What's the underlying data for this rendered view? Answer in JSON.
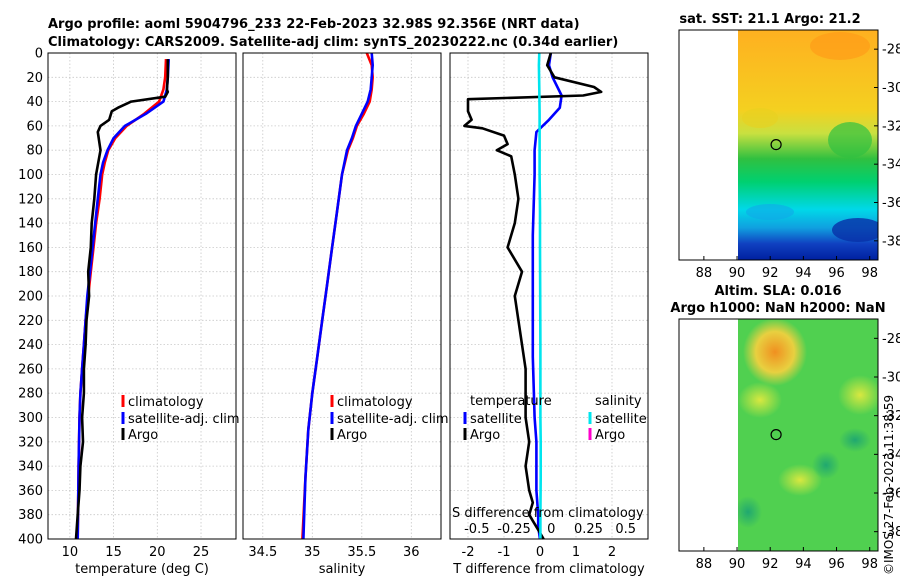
{
  "header": {
    "line1": "Argo profile: aoml 5904796_233 22-Feb-2023 32.98S 92.356E (NRT data)",
    "line2": "Climatology: CARS2009. Satellite-adj clim: synTS_20230222.nc (0.34d earlier)"
  },
  "colors": {
    "climatology": "#ff0000",
    "satellite": "#0000ff",
    "argo": "#000000",
    "satellite_salinity": "#00e5ee",
    "argo_salinity": "#ff00cc"
  },
  "chart_data": [
    {
      "id": "temperature",
      "type": "line",
      "xlabel": "temperature (deg C)",
      "ylabel": "",
      "xlim": [
        7.5,
        29
      ],
      "ylim": [
        0,
        400
      ],
      "y_reversed": true,
      "xticks": [
        10,
        15,
        20,
        25
      ],
      "yticks": [
        0,
        20,
        40,
        60,
        80,
        100,
        120,
        140,
        160,
        180,
        200,
        220,
        240,
        260,
        280,
        300,
        320,
        340,
        360,
        380,
        400
      ],
      "grid": true,
      "legend_position": "lower-right",
      "legend": [
        {
          "label": "climatology",
          "color": "#ff0000"
        },
        {
          "label": "satellite-adj. clim",
          "color": "#0000ff"
        },
        {
          "label": "Argo",
          "color": "#000000"
        }
      ],
      "series": [
        {
          "name": "climatology",
          "color": "#ff0000",
          "x": [
            21.0,
            20.9,
            20.7,
            20.2,
            18.5,
            16.5,
            15.2,
            14.4,
            14.0,
            13.7,
            13.4,
            13.0,
            12.7,
            12.4,
            12.1,
            11.8,
            11.6,
            11.4,
            11.2,
            11.1,
            11.0,
            10.9
          ],
          "y": [
            5,
            20,
            30,
            40,
            50,
            60,
            70,
            80,
            90,
            100,
            120,
            140,
            160,
            180,
            200,
            220,
            240,
            260,
            280,
            300,
            340,
            400
          ]
        },
        {
          "name": "satellite-adj. clim",
          "color": "#0000ff",
          "x": [
            21.3,
            21.2,
            21.1,
            20.7,
            18.7,
            16.3,
            15.0,
            14.3,
            13.8,
            13.5,
            13.2,
            12.9,
            12.6,
            12.3,
            12.0,
            11.8,
            11.6,
            11.4,
            11.2,
            11.1,
            11.0,
            10.9
          ],
          "y": [
            5,
            20,
            30,
            40,
            50,
            60,
            70,
            80,
            90,
            100,
            120,
            140,
            160,
            180,
            200,
            220,
            240,
            260,
            280,
            300,
            340,
            400
          ]
        },
        {
          "name": "Argo",
          "color": "#000000",
          "x": [
            21.2,
            21.2,
            21.1,
            21.2,
            20.9,
            17.0,
            15.5,
            14.8,
            14.5,
            13.5,
            13.2,
            13.5,
            13.0,
            12.8,
            12.5,
            12.4,
            12.1,
            12.2,
            11.9,
            11.8,
            11.6,
            11.6,
            11.4,
            11.5,
            11.2,
            11.1,
            10.9,
            10.7
          ],
          "y": [
            5,
            20,
            30,
            32,
            36,
            40,
            45,
            48,
            55,
            60,
            65,
            80,
            100,
            120,
            140,
            160,
            180,
            200,
            220,
            240,
            260,
            280,
            300,
            320,
            340,
            360,
            380,
            400
          ]
        }
      ]
    },
    {
      "id": "salinity",
      "type": "line",
      "xlabel": "salinity",
      "xlim": [
        34.3,
        36.3
      ],
      "ylim": [
        0,
        400
      ],
      "y_reversed": true,
      "xticks": [
        34.5,
        35,
        35.5,
        36
      ],
      "grid": true,
      "legend_position": "lower-right",
      "legend": [
        {
          "label": "climatology",
          "color": "#ff0000"
        },
        {
          "label": "satellite-adj. clim",
          "color": "#0000ff"
        },
        {
          "label": "Argo",
          "color": "#000000"
        }
      ],
      "series": [
        {
          "name": "climatology",
          "color": "#ff0000",
          "x": [
            35.55,
            35.6,
            35.61,
            35.6,
            35.58,
            35.52,
            35.45,
            35.41,
            35.36,
            35.3,
            35.25,
            35.2,
            35.15,
            35.1,
            35.05,
            35.0,
            34.96,
            34.93,
            34.9
          ],
          "y": [
            0,
            10,
            20,
            30,
            40,
            50,
            60,
            70,
            80,
            100,
            130,
            160,
            190,
            220,
            250,
            280,
            310,
            350,
            400
          ]
        },
        {
          "name": "satellite-adj. clim",
          "color": "#0000ff",
          "x": [
            35.6,
            35.61,
            35.6,
            35.59,
            35.56,
            35.5,
            35.44,
            35.4,
            35.35,
            35.3,
            35.25,
            35.2,
            35.15,
            35.1,
            35.05,
            35.0,
            34.96,
            34.93,
            34.91
          ],
          "y": [
            0,
            10,
            20,
            30,
            40,
            50,
            60,
            70,
            80,
            100,
            130,
            160,
            190,
            220,
            250,
            280,
            310,
            350,
            400
          ]
        }
      ]
    },
    {
      "id": "difference",
      "type": "line",
      "xlabel": "T difference from climatology",
      "xlim": [
        -2.5,
        3
      ],
      "ylim": [
        0,
        400
      ],
      "y_reversed": true,
      "xticks": [
        -2,
        -1,
        0,
        1,
        2
      ],
      "top_axis_label": "S difference from climatology",
      "top_ticks": [
        "-0.5",
        "-0.25",
        "0",
        "0.25",
        "0.5"
      ],
      "top_tick_values": [
        -0.5,
        -0.25,
        0,
        0.25,
        0.5
      ],
      "grid": true,
      "legend_position": "lower-center",
      "legend_headers": [
        "temperature",
        "salinity"
      ],
      "legend": [
        {
          "label": "satellite",
          "color": "#0000ff",
          "group": "temperature"
        },
        {
          "label": "Argo",
          "color": "#000000",
          "group": "temperature"
        },
        {
          "label": "satellite",
          "color": "#00e5ee",
          "group": "salinity"
        },
        {
          "label": "Argo",
          "color": "#ff00cc",
          "group": "salinity"
        }
      ],
      "series": [
        {
          "name": "T satellite",
          "color": "#0000ff",
          "x": [
            0.3,
            0.25,
            0.35,
            0.6,
            0.55,
            0.25,
            -0.1,
            -0.15,
            -0.15,
            -0.2,
            -0.2,
            -0.2,
            -0.15,
            -0.1,
            -0.1,
            -0.1,
            -0.05,
            -0.05,
            0.0
          ],
          "y": [
            0,
            10,
            20,
            35,
            45,
            55,
            65,
            80,
            100,
            150,
            200,
            250,
            300,
            320,
            340,
            360,
            380,
            390,
            400
          ]
        },
        {
          "name": "T Argo",
          "color": "#000000",
          "x": [
            0.3,
            0.2,
            0.4,
            1.5,
            1.7,
            1.2,
            -2.0,
            -2.0,
            -1.9,
            -2.1,
            -1.6,
            -1.0,
            -0.9,
            -1.2,
            -0.8,
            -0.7,
            -0.6,
            -0.7,
            -0.9,
            -0.5,
            -0.7,
            -0.6,
            -0.5,
            -0.4,
            -0.4,
            -0.4,
            -0.3,
            -0.4,
            -0.3,
            -0.2,
            -0.3,
            -0.2,
            -0.1,
            0.0,
            0.1
          ],
          "y": [
            0,
            10,
            20,
            28,
            32,
            35,
            38,
            48,
            55,
            60,
            62,
            68,
            75,
            80,
            85,
            100,
            120,
            140,
            160,
            180,
            200,
            220,
            240,
            260,
            280,
            300,
            320,
            340,
            360,
            370,
            380,
            385,
            390,
            395,
            400
          ]
        },
        {
          "name": "S satellite",
          "color": "#00e5ee",
          "x": [
            -0.02,
            -0.03,
            -0.02,
            -0.01,
            -0.01,
            -0.01,
            0.0,
            0.0,
            0.005,
            0.01,
            0.01,
            0.01,
            0.02,
            0.02,
            0.01,
            0.01
          ],
          "y": [
            0,
            10,
            30,
            50,
            70,
            100,
            130,
            160,
            200,
            240,
            280,
            300,
            320,
            350,
            380,
            400
          ]
        }
      ]
    },
    {
      "id": "sst-map",
      "type": "heatmap",
      "title": "sat. SST: 21.1 Argo: 21.2",
      "xticks": [
        "88",
        "90",
        "92",
        "94",
        "96",
        "98"
      ],
      "xtick_values": [
        88,
        90,
        92,
        94,
        96,
        98
      ],
      "yticks": [
        "-28",
        "-30",
        "-32",
        "-34",
        "-36",
        "-38"
      ],
      "ytick_values": [
        -28,
        -30,
        -32,
        -34,
        -36,
        -38
      ],
      "xlim": [
        86.5,
        98.5
      ],
      "ylim": [
        -39,
        -27
      ],
      "data_xlim": [
        90,
        98.3
      ],
      "marker": {
        "lon": 92.356,
        "lat": -32.98
      },
      "bands": [
        {
          "lat": [
            -27,
            -32
          ],
          "color": "#ffb020"
        },
        {
          "lat": [
            -32,
            -34
          ],
          "color": "#78d050"
        },
        {
          "lat": [
            -34,
            -36
          ],
          "color": "#00c060"
        },
        {
          "lat": [
            -36,
            -37.5
          ],
          "color": "#00d8e8"
        },
        {
          "lat": [
            -37.5,
            -39
          ],
          "color": "#1040c0"
        }
      ]
    },
    {
      "id": "sla-map",
      "type": "heatmap",
      "title_line1": "Altim. SLA: 0.016",
      "title_line2": "Argo h1000: NaN h2000: NaN",
      "xticks": [
        "88",
        "90",
        "92",
        "94",
        "96",
        "98"
      ],
      "xtick_values": [
        88,
        90,
        92,
        94,
        96,
        98
      ],
      "yticks": [
        "-28",
        "-30",
        "-32",
        "-34",
        "-36",
        "-38"
      ],
      "ytick_values": [
        -28,
        -30,
        -32,
        -34,
        -36,
        -38
      ],
      "xlim": [
        86.5,
        98.5
      ],
      "ylim": [
        -39,
        -27
      ],
      "data_xlim": [
        90,
        98.3
      ],
      "marker": {
        "lon": 92.356,
        "lat": -32.98
      }
    }
  ],
  "footer": {
    "timestamp": "©IMOS 27-Feb-2023 11:38:59"
  }
}
